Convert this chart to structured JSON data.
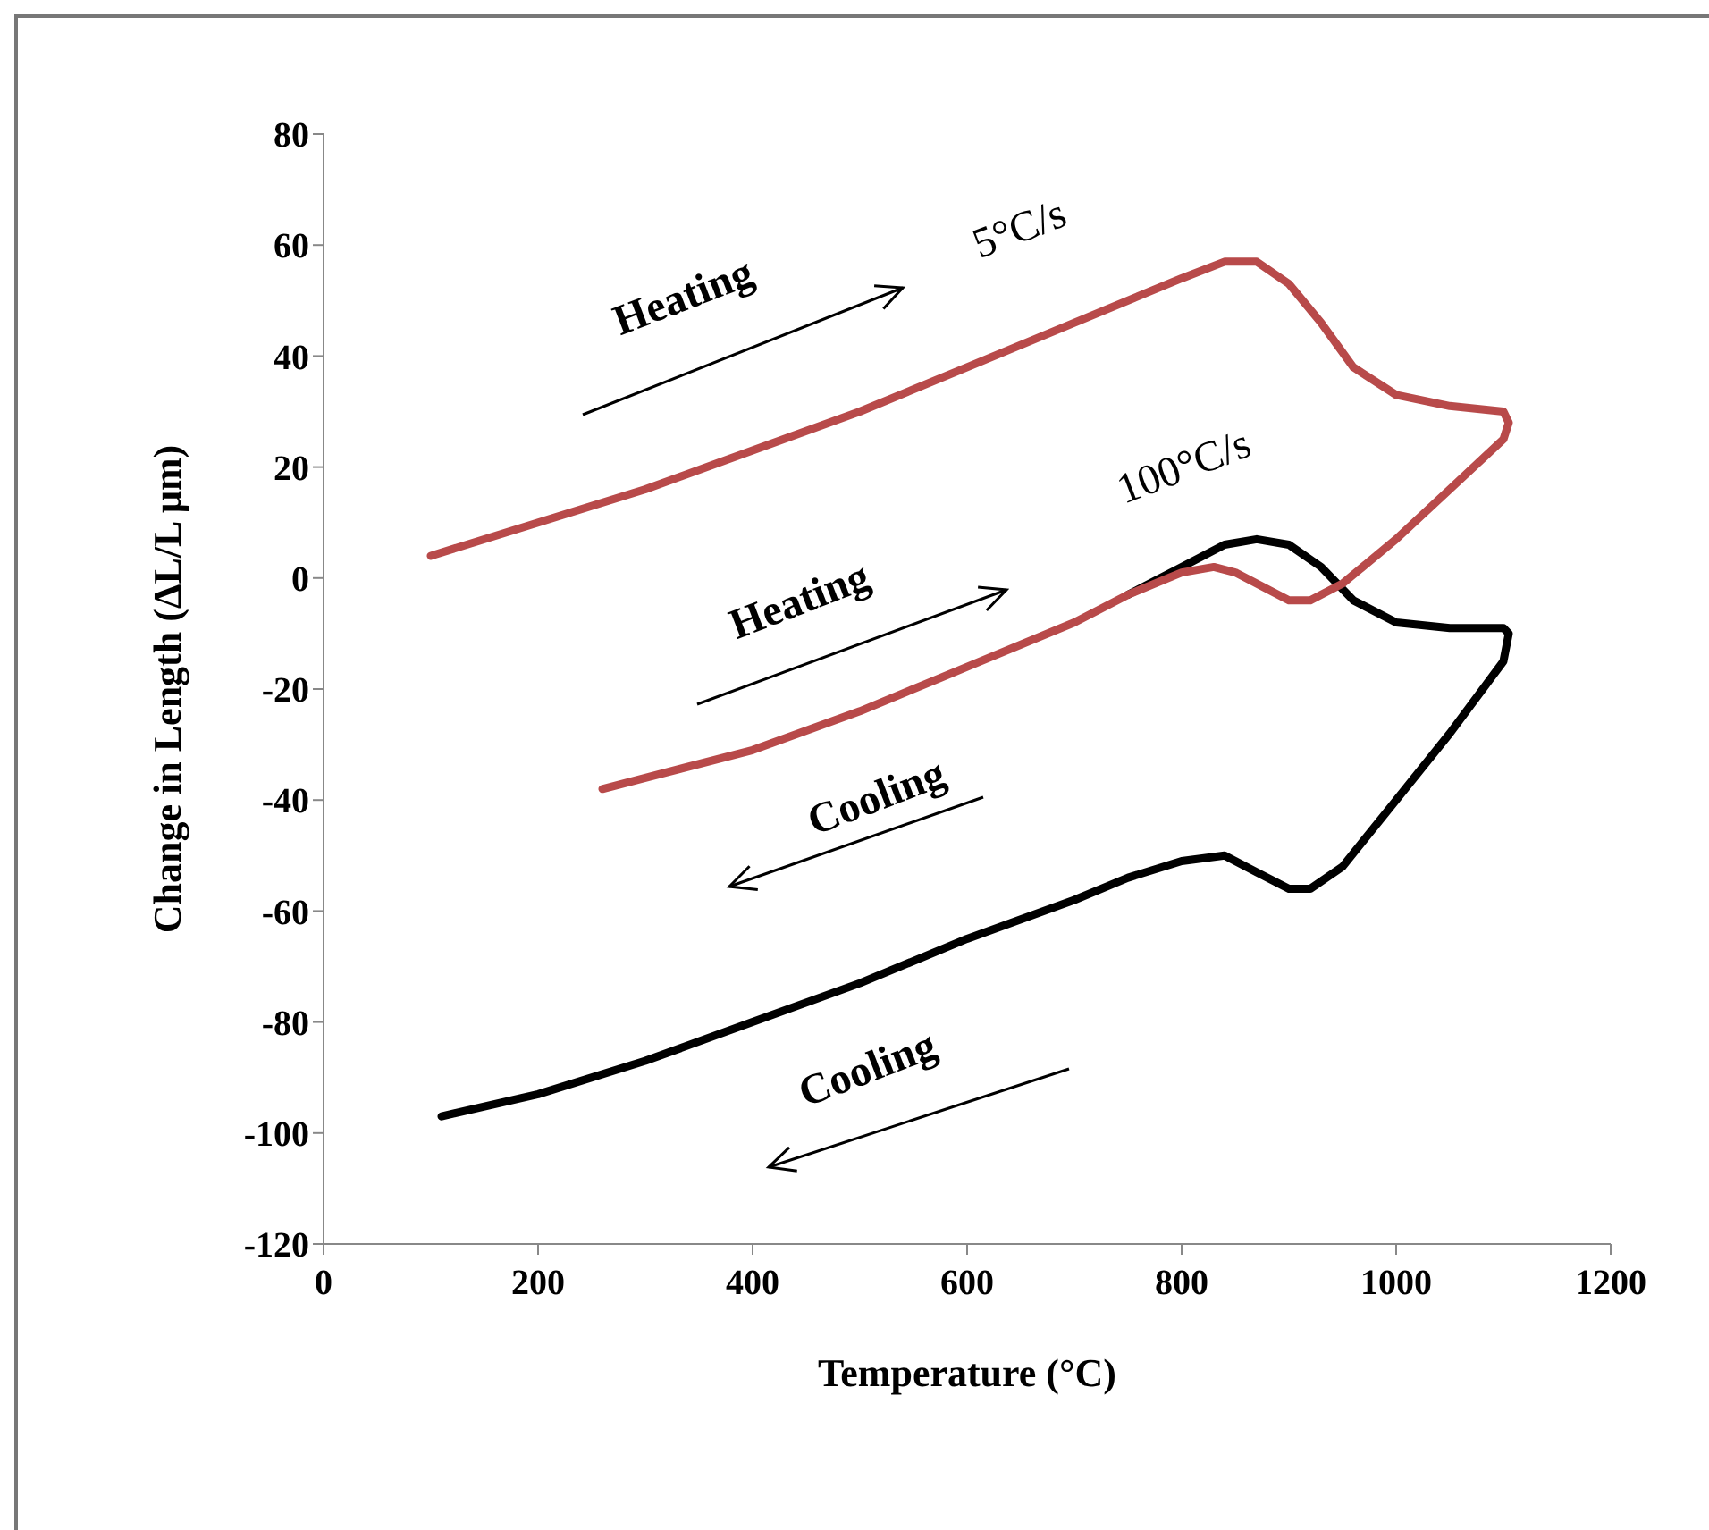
{
  "chart_data": {
    "type": "line",
    "xlabel": "Temperature (°C)",
    "ylabel": "Change in Length (ΔL/L μm)",
    "xlim": [
      0,
      1200
    ],
    "xticks": [
      0,
      200,
      400,
      600,
      800,
      1000,
      1200
    ],
    "ylim": [
      -120,
      80
    ],
    "yticks": [
      -120,
      -100,
      -80,
      -60,
      -40,
      -20,
      0,
      20,
      40,
      60,
      80
    ],
    "annotations": [
      "Heating",
      "5°C/s",
      "Heating",
      "100°C/s",
      "Cooling",
      "Cooling"
    ],
    "series": [
      {
        "color": "#000000",
        "x": [
          750,
          800,
          840,
          870,
          900,
          930,
          960,
          1000,
          1050,
          1100,
          1105,
          1100,
          1050,
          1000,
          950,
          920,
          900,
          870,
          840,
          800,
          750,
          700,
          600,
          500,
          400,
          300,
          200,
          110
        ],
        "values": [
          -3,
          2,
          6,
          7,
          6,
          2,
          -4,
          -8,
          -9,
          -9,
          -10,
          -15,
          -28,
          -40,
          -52,
          -56,
          -56,
          -53,
          -50,
          -51,
          -54,
          -58,
          -65,
          -73,
          -80,
          -87,
          -93,
          -97
        ]
      },
      {
        "color": "#b84a4a",
        "x": [
          100,
          200,
          300,
          400,
          500,
          600,
          700,
          800,
          840,
          870,
          900,
          930,
          960,
          1000,
          1050,
          1100,
          1105,
          1100,
          1050,
          1000,
          950,
          920,
          900,
          880,
          850,
          830,
          800,
          750,
          700,
          600,
          500,
          400,
          300,
          260
        ],
        "values": [
          4,
          10,
          16,
          23,
          30,
          38,
          46,
          54,
          57,
          57,
          53,
          46,
          38,
          33,
          31,
          30,
          28,
          25,
          16,
          7,
          -1,
          -4,
          -4,
          -2,
          1,
          2,
          1,
          -3,
          -8,
          -16,
          -24,
          -31,
          -36,
          -38
        ]
      }
    ]
  }
}
